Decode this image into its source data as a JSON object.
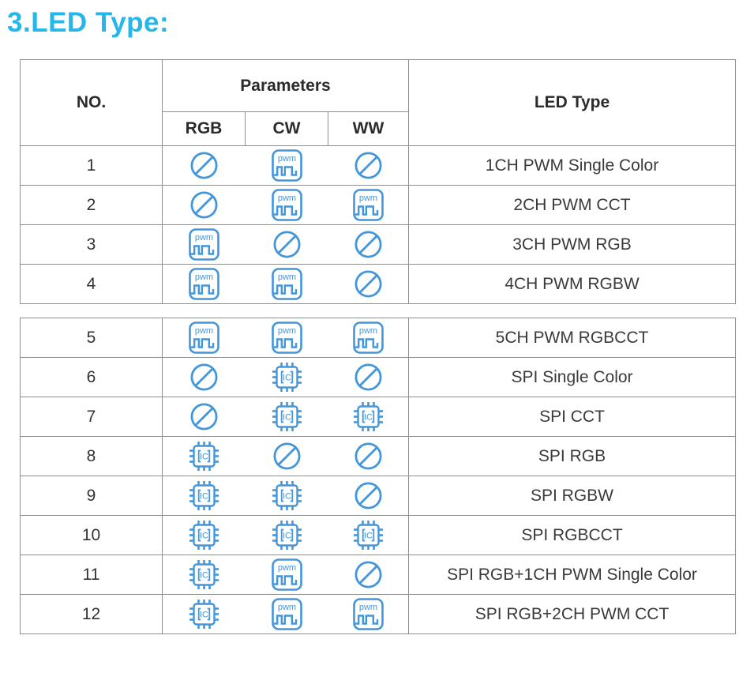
{
  "title": "3.LED Type:",
  "colors": {
    "title_cyan": "#25B6EA",
    "icon_blue": "#4496DB",
    "border_gray": "#8E8E8E",
    "text_dark": "#3A3A3A"
  },
  "table": {
    "headers": {
      "no": "NO.",
      "parameters": "Parameters",
      "rgb": "RGB",
      "cw": "CW",
      "ww": "WW",
      "led_type": "LED Type"
    },
    "icon_labels": {
      "pwm": "pwm",
      "ic": "IC",
      "none": "not-supported"
    },
    "section_break_after": 4,
    "rows": [
      {
        "no": "1",
        "rgb": "none",
        "cw": "pwm",
        "ww": "none",
        "led_type": "1CH PWM Single Color"
      },
      {
        "no": "2",
        "rgb": "none",
        "cw": "pwm",
        "ww": "pwm",
        "led_type": "2CH PWM CCT"
      },
      {
        "no": "3",
        "rgb": "pwm",
        "cw": "none",
        "ww": "none",
        "led_type": "3CH PWM RGB"
      },
      {
        "no": "4",
        "rgb": "pwm",
        "cw": "pwm",
        "ww": "none",
        "led_type": "4CH PWM RGBW"
      },
      {
        "no": "5",
        "rgb": "pwm",
        "cw": "pwm",
        "ww": "pwm",
        "led_type": "5CH PWM RGBCCT"
      },
      {
        "no": "6",
        "rgb": "none",
        "cw": "ic",
        "ww": "none",
        "led_type": "SPI Single Color"
      },
      {
        "no": "7",
        "rgb": "none",
        "cw": "ic",
        "ww": "ic",
        "led_type": "SPI CCT"
      },
      {
        "no": "8",
        "rgb": "ic",
        "cw": "none",
        "ww": "none",
        "led_type": "SPI RGB"
      },
      {
        "no": "9",
        "rgb": "ic",
        "cw": "ic",
        "ww": "none",
        "led_type": "SPI RGBW"
      },
      {
        "no": "10",
        "rgb": "ic",
        "cw": "ic",
        "ww": "ic",
        "led_type": "SPI RGBCCT"
      },
      {
        "no": "11",
        "rgb": "ic",
        "cw": "pwm",
        "ww": "none",
        "led_type": "SPI RGB+1CH PWM Single Color"
      },
      {
        "no": "12",
        "rgb": "ic",
        "cw": "pwm",
        "ww": "pwm",
        "led_type": "SPI RGB+2CH PWM CCT"
      }
    ]
  }
}
